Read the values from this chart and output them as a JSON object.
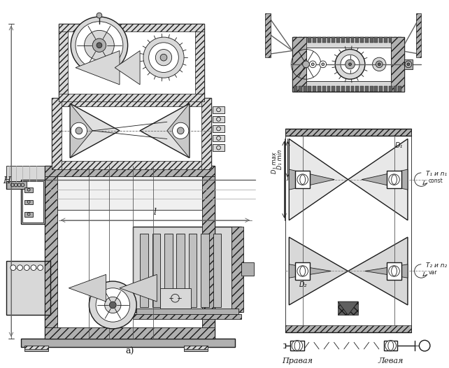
{
  "bg_color": "#ffffff",
  "line_color": "#1a1a1a",
  "label_a": "a)",
  "label_H": "H",
  "label_L": "l",
  "label_D1max": "D₁ max",
  "label_D1min": "D₁ min",
  "label_D1": "D₁",
  "label_D2": "D₂",
  "label_T1n1": "T₁ и n₁",
  "label_T1n1_sub": "const",
  "label_T2n2": "T₂ и n₂",
  "label_T2n2_sub": "var",
  "label_right": "Правая",
  "label_left": "Левая",
  "fig_width": 6.42,
  "fig_height": 5.26,
  "dpi": 100
}
